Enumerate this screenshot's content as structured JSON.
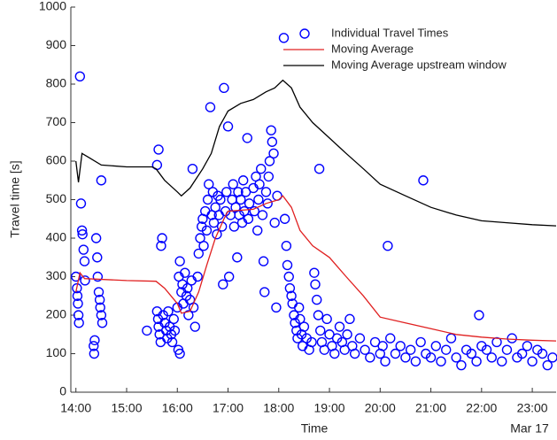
{
  "chart_data": {
    "type": "scatter",
    "xlabel": "Time",
    "ylabel": "Travel time [s]",
    "annotation": "Mar 17",
    "xlim": [
      13.9,
      23.47
    ],
    "ylim": [
      0,
      1000
    ],
    "xticks": [
      {
        "value": 14,
        "label": "14:00"
      },
      {
        "value": 15,
        "label": "15:00"
      },
      {
        "value": 16,
        "label": "16:00"
      },
      {
        "value": 17,
        "label": "17:00"
      },
      {
        "value": 18,
        "label": "18:00"
      },
      {
        "value": 19,
        "label": "19:00"
      },
      {
        "value": 20,
        "label": "20:00"
      },
      {
        "value": 21,
        "label": "21:00"
      },
      {
        "value": 22,
        "label": "22:00"
      },
      {
        "value": 23,
        "label": "23:00"
      }
    ],
    "yticks": [
      0,
      100,
      200,
      300,
      400,
      500,
      600,
      700,
      800,
      900,
      1000
    ],
    "legend": "upper right",
    "grid": false,
    "series": [
      {
        "name": "Individual Travel Times",
        "color": "#0000ff",
        "type": "scatter",
        "x": [
          14.0,
          14.02,
          14.03,
          14.04,
          14.05,
          14.06,
          14.08,
          14.1,
          14.12,
          14.13,
          14.15,
          14.17,
          14.18,
          14.35,
          14.36,
          14.37,
          14.4,
          14.42,
          14.43,
          14.45,
          14.47,
          14.48,
          14.5,
          14.52,
          14.5,
          15.4,
          15.6,
          15.62,
          15.63,
          15.65,
          15.67,
          15.68,
          15.7,
          15.6,
          15.63,
          15.72,
          15.75,
          15.78,
          15.8,
          15.82,
          15.85,
          15.88,
          15.9,
          15.93,
          15.95,
          16.0,
          16.02,
          16.05,
          16.03,
          16.05,
          16.08,
          16.1,
          16.12,
          16.15,
          16.18,
          16.2,
          16.22,
          16.25,
          16.28,
          16.3,
          16.32,
          16.35,
          16.4,
          16.42,
          16.45,
          16.48,
          16.5,
          16.52,
          16.55,
          16.58,
          16.6,
          16.62,
          16.65,
          16.68,
          16.7,
          16.72,
          16.75,
          16.78,
          16.8,
          16.82,
          16.85,
          16.88,
          16.9,
          16.92,
          16.95,
          16.97,
          17.0,
          17.02,
          17.05,
          17.08,
          17.1,
          17.12,
          17.15,
          17.18,
          17.2,
          17.22,
          17.25,
          17.28,
          17.3,
          17.32,
          17.35,
          17.38,
          17.4,
          17.42,
          17.5,
          17.52,
          17.55,
          17.58,
          17.6,
          17.62,
          17.65,
          17.68,
          17.7,
          17.72,
          17.75,
          17.78,
          17.8,
          17.82,
          17.85,
          17.87,
          17.9,
          17.92,
          17.95,
          17.97,
          18.1,
          18.12,
          18.15,
          18.17,
          18.2,
          18.22,
          18.25,
          18.27,
          18.3,
          18.32,
          18.35,
          18.37,
          18.4,
          18.42,
          18.45,
          18.47,
          18.5,
          18.55,
          18.6,
          18.65,
          18.7,
          18.72,
          18.75,
          18.78,
          18.8,
          18.82,
          18.85,
          18.9,
          18.95,
          19.0,
          19.05,
          19.1,
          19.15,
          19.2,
          19.25,
          19.3,
          19.35,
          19.4,
          19.45,
          19.5,
          19.6,
          19.7,
          19.8,
          19.9,
          20.0,
          20.05,
          20.1,
          20.15,
          20.2,
          20.3,
          20.4,
          20.5,
          20.6,
          20.7,
          20.8,
          20.85,
          20.9,
          21.0,
          21.1,
          21.2,
          21.3,
          21.4,
          21.5,
          21.6,
          21.7,
          21.8,
          21.9,
          21.95,
          22.0,
          22.1,
          22.2,
          22.3,
          22.4,
          22.5,
          22.6,
          22.7,
          22.8,
          22.9,
          23.0,
          23.1,
          23.2,
          23.3,
          23.4
        ],
        "values": [
          300,
          270,
          250,
          230,
          200,
          180,
          820,
          490,
          420,
          410,
          370,
          340,
          290,
          120,
          100,
          135,
          400,
          350,
          300,
          260,
          240,
          220,
          200,
          180,
          550,
          160,
          210,
          190,
          170,
          150,
          130,
          380,
          400,
          590,
          630,
          200,
          180,
          160,
          140,
          210,
          170,
          150,
          130,
          190,
          160,
          220,
          110,
          100,
          300,
          340,
          260,
          280,
          230,
          310,
          250,
          270,
          200,
          240,
          290,
          580,
          220,
          170,
          300,
          360,
          400,
          430,
          450,
          380,
          470,
          420,
          500,
          540,
          740,
          460,
          520,
          440,
          480,
          410,
          510,
          460,
          500,
          430,
          280,
          790,
          470,
          520,
          690,
          300,
          460,
          500,
          540,
          430,
          480,
          350,
          520,
          460,
          500,
          440,
          550,
          470,
          520,
          660,
          450,
          490,
          530,
          470,
          560,
          420,
          500,
          540,
          580,
          460,
          340,
          260,
          520,
          490,
          560,
          600,
          680,
          650,
          620,
          440,
          220,
          510,
          920,
          450,
          380,
          330,
          300,
          270,
          250,
          230,
          200,
          180,
          160,
          140,
          220,
          190,
          150,
          120,
          170,
          140,
          110,
          130,
          310,
          280,
          240,
          200,
          580,
          160,
          130,
          110,
          190,
          150,
          120,
          100,
          140,
          170,
          130,
          110,
          150,
          190,
          120,
          100,
          140,
          110,
          90,
          130,
          100,
          120,
          80,
          380,
          140,
          100,
          120,
          90,
          110,
          80,
          130,
          550,
          100,
          90,
          120,
          80,
          110,
          140,
          90,
          70,
          110,
          100,
          80,
          200,
          120,
          110,
          90,
          130,
          80,
          110,
          140,
          90,
          100,
          120,
          80,
          110,
          100,
          70,
          90
        ]
      },
      {
        "name": "Moving Average",
        "color": "#e02020",
        "type": "line",
        "x": [
          14.0,
          14.08,
          14.17,
          15.0,
          15.58,
          15.75,
          16.0,
          16.08,
          16.25,
          16.42,
          16.58,
          16.75,
          16.92,
          17.0,
          17.5,
          17.75,
          18.0,
          18.08,
          18.25,
          18.42,
          18.67,
          19.0,
          19.33,
          19.67,
          20.0,
          20.5,
          21.0,
          21.5,
          22.0,
          22.5,
          23.0,
          23.47
        ],
        "values": [
          260,
          310,
          295,
          290,
          288,
          270,
          230,
          205,
          210,
          260,
          330,
          400,
          450,
          470,
          475,
          490,
          500,
          510,
          480,
          420,
          380,
          350,
          300,
          250,
          195,
          180,
          165,
          150,
          143,
          138,
          135,
          133
        ]
      },
      {
        "name": "Moving Average upstream window",
        "color": "#000000",
        "type": "line",
        "x": [
          14.0,
          14.05,
          14.12,
          14.25,
          14.5,
          15.0,
          15.5,
          15.58,
          15.75,
          16.0,
          16.08,
          16.25,
          16.5,
          16.67,
          16.83,
          17.0,
          17.25,
          17.5,
          17.75,
          17.92,
          18.08,
          18.25,
          18.42,
          18.67,
          19.0,
          19.33,
          19.67,
          20.0,
          20.5,
          21.0,
          21.5,
          22.0,
          22.5,
          23.0,
          23.47
        ],
        "values": [
          600,
          545,
          620,
          610,
          590,
          585,
          585,
          580,
          550,
          520,
          510,
          530,
          580,
          620,
          690,
          730,
          750,
          760,
          780,
          790,
          810,
          790,
          740,
          700,
          660,
          620,
          580,
          540,
          510,
          480,
          460,
          445,
          440,
          435,
          432
        ]
      }
    ]
  }
}
